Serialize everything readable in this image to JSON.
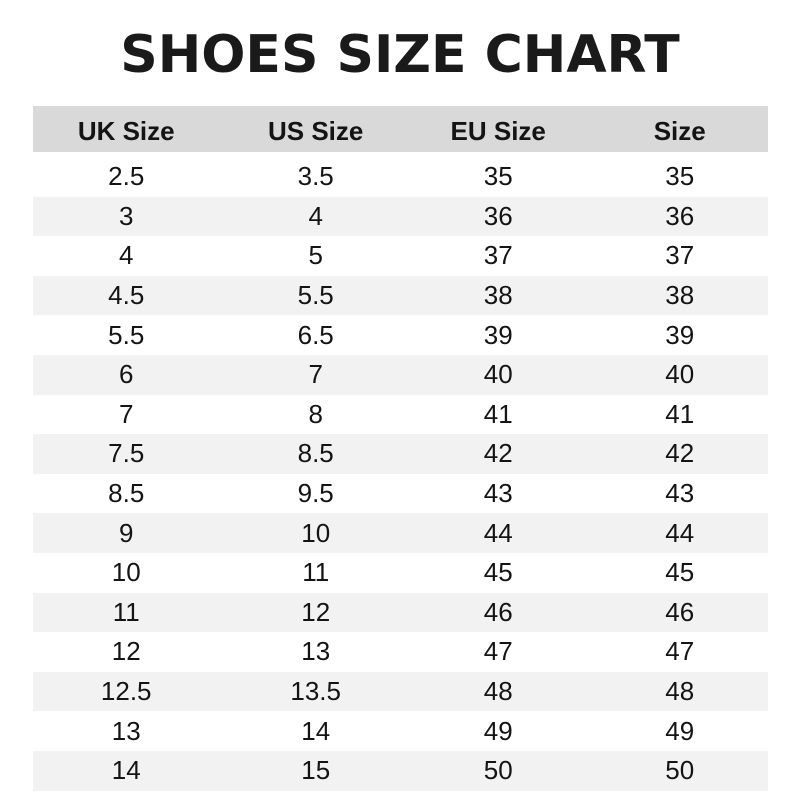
{
  "title": "SHOES SIZE CHART",
  "colors": {
    "header_bg": "#d9d9d9",
    "alt_row_bg": "#f2f2f2",
    "text": "#141414"
  },
  "headers": [
    "UK Size",
    "US Size",
    "EU Size",
    "Size"
  ],
  "rows": [
    [
      "2.5",
      "3.5",
      "35",
      "35"
    ],
    [
      "3",
      "4",
      "36",
      "36"
    ],
    [
      "4",
      "5",
      "37",
      "37"
    ],
    [
      "4.5",
      "5.5",
      "38",
      "38"
    ],
    [
      "5.5",
      "6.5",
      "39",
      "39"
    ],
    [
      "6",
      "7",
      "40",
      "40"
    ],
    [
      "7",
      "8",
      "41",
      "41"
    ],
    [
      "7.5",
      "8.5",
      "42",
      "42"
    ],
    [
      "8.5",
      "9.5",
      "43",
      "43"
    ],
    [
      "9",
      "10",
      "44",
      "44"
    ],
    [
      "10",
      "11",
      "45",
      "45"
    ],
    [
      "11",
      "12",
      "46",
      "46"
    ],
    [
      "12",
      "13",
      "47",
      "47"
    ],
    [
      "12.5",
      "13.5",
      "48",
      "48"
    ],
    [
      "13",
      "14",
      "49",
      "49"
    ],
    [
      "14",
      "15",
      "50",
      "50"
    ]
  ]
}
